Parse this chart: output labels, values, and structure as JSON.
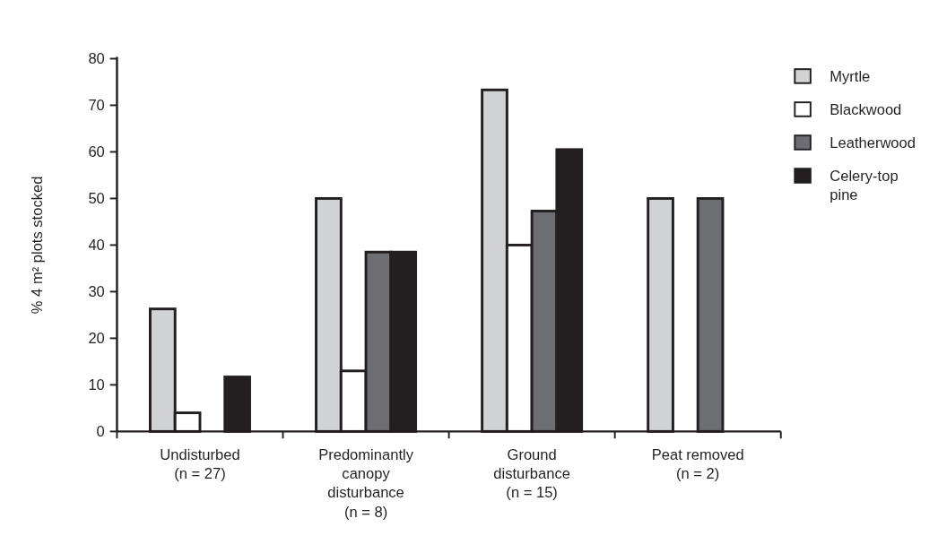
{
  "chart_data": {
    "type": "bar",
    "ylabel": "% 4 m² plots stocked",
    "categories": [
      "Undisturbed\n(n = 27)",
      "Predominantly\ncanopy\ndisturbance\n(n = 8)",
      "Ground\ndisturbance\n(n = 15)",
      "Peat removed\n(n = 2)"
    ],
    "series": [
      {
        "name": "Myrtle",
        "color": "#d1d2d4",
        "values": [
          26.3,
          50,
          73.3,
          50
        ]
      },
      {
        "name": "Blackwood",
        "color": "#ffffff",
        "values": [
          4,
          13,
          40,
          0
        ]
      },
      {
        "name": "Leatherwood",
        "color": "#6d6e71",
        "values": [
          0,
          38.5,
          47.3,
          50
        ]
      },
      {
        "name": "Celery-top pine",
        "color": "#231f20",
        "values": [
          11.7,
          38.5,
          60.5,
          0
        ]
      }
    ],
    "ylim": [
      0,
      80
    ],
    "yticks": [
      0,
      10,
      20,
      30,
      40,
      50,
      60,
      70,
      80
    ],
    "grid": false,
    "legend": "right"
  }
}
